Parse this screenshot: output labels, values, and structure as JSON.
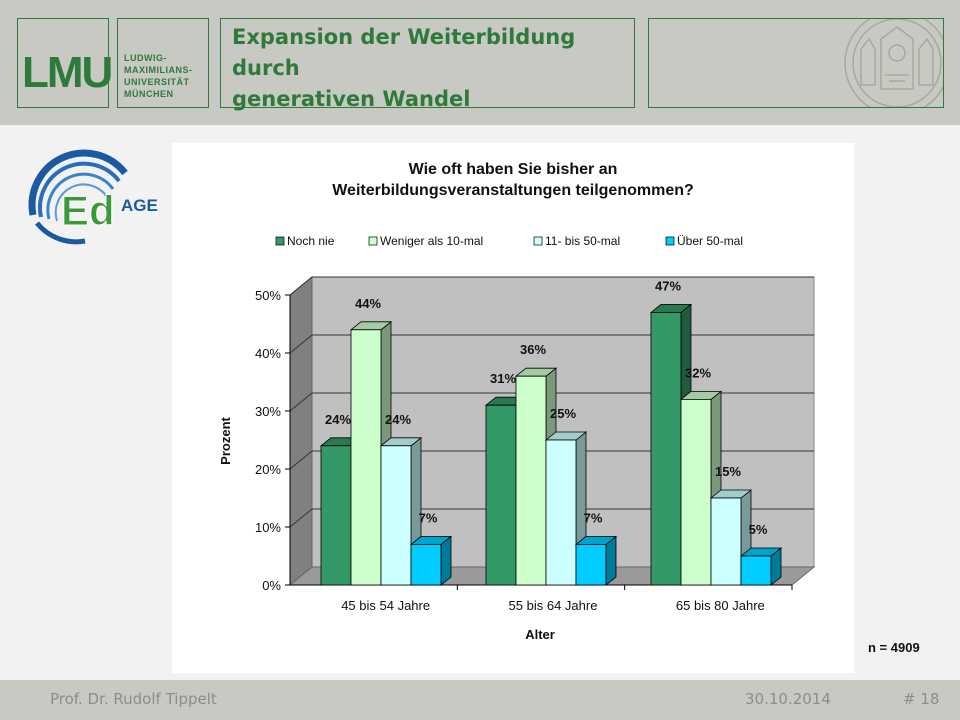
{
  "header": {
    "logo_text": "LMU",
    "university_lines": [
      "LUDWIG-",
      "MAXIMILIANS-",
      "UNIVERSITÄT",
      "MÜNCHEN"
    ],
    "title_line1": "Expansion der Weiterbildung durch",
    "title_line2": "generativen Wandel",
    "accent_color": "#2e7a3a"
  },
  "edage_logo": {
    "ed": "Ed",
    "age": "AGE"
  },
  "footer": {
    "author": "Prof. Dr. Rudolf Tippelt",
    "date": "30.10.2014",
    "slide_number": "# 18"
  },
  "n_label": "n = 4909",
  "chart_data": {
    "type": "bar",
    "title_line1": "Wie oft haben Sie bisher an",
    "title_line2": "Weiterbildungsveranstaltungen teilgenommen?",
    "categories": [
      "45 bis 54 Jahre",
      "55 bis 64 Jahre",
      "65 bis 80 Jahre"
    ],
    "series": [
      {
        "name": "Noch nie",
        "values": [
          24,
          31,
          47
        ],
        "color": "#339966"
      },
      {
        "name": "Weniger als 10-mal",
        "values": [
          44,
          36,
          32
        ],
        "color": "#ccffcc"
      },
      {
        "name": "11- bis 50-mal",
        "values": [
          24,
          25,
          15
        ],
        "color": "#ccffff"
      },
      {
        "name": "Über 50-mal",
        "values": [
          7,
          7,
          5
        ],
        "color": "#00ccff"
      }
    ],
    "data_labels": [
      [
        "24%",
        "31%",
        "47%"
      ],
      [
        "44%",
        "36%",
        "32%"
      ],
      [
        "24%",
        "25%",
        "15%"
      ],
      [
        "7%",
        "7%",
        "5%"
      ]
    ],
    "xlabel": "Alter",
    "ylabel": "Prozent",
    "ylim": [
      0,
      50
    ],
    "yticks": [
      "0%",
      "10%",
      "20%",
      "30%",
      "40%",
      "50%"
    ],
    "grid": true,
    "legend_position": "top"
  }
}
